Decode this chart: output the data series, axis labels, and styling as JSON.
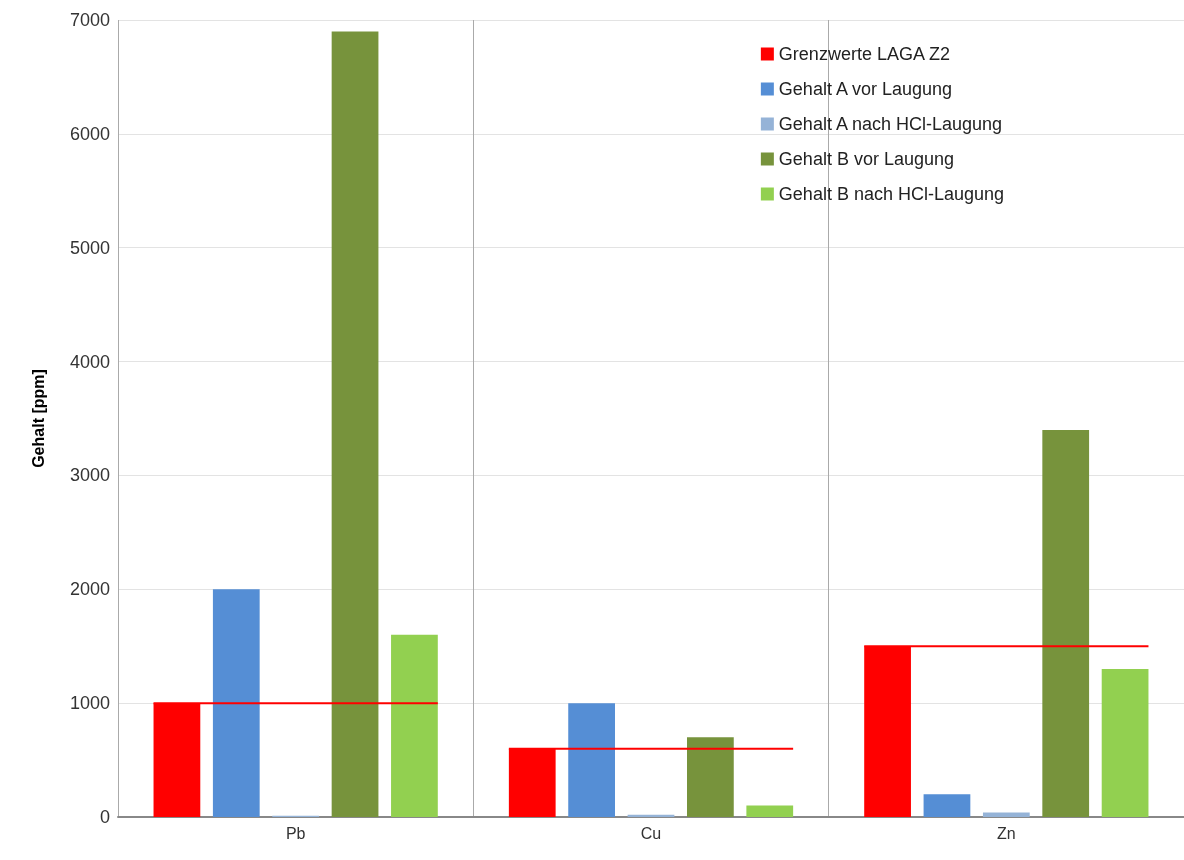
{
  "chart_data": {
    "type": "bar",
    "ylabel": "Gehalt [ppm]",
    "categories": [
      "Pb",
      "Cu",
      "Zn"
    ],
    "series": [
      {
        "name": "Grenzwerte LAGA Z2",
        "color": "#ff0000",
        "values": [
          1000,
          600,
          1500
        ]
      },
      {
        "name": "Gehalt A vor Laugung",
        "color": "#558ed5",
        "values": [
          2000,
          1000,
          200
        ]
      },
      {
        "name": "Gehalt A nach HCl-Laugung",
        "color": "#95b3d7",
        "values": [
          10,
          20,
          40
        ]
      },
      {
        "name": "Gehalt B vor Laugung",
        "color": "#77933c",
        "values": [
          6900,
          700,
          3400
        ]
      },
      {
        "name": "Gehalt B nach HCl-Laugung",
        "color": "#92d050",
        "values": [
          1600,
          100,
          1300
        ]
      }
    ],
    "ref_lines": [
      {
        "axis": "y",
        "value": 1000,
        "color": "#ff0000"
      },
      {
        "axis": "y",
        "value": 600,
        "color": "#ff0000"
      },
      {
        "axis": "y",
        "value": 1500,
        "color": "#ff0000"
      }
    ],
    "ylim": [
      0,
      7000
    ],
    "yticks": [
      0,
      1000,
      2000,
      3000,
      4000,
      5000,
      6000,
      7000
    ],
    "grid": true,
    "legend": "top right"
  }
}
